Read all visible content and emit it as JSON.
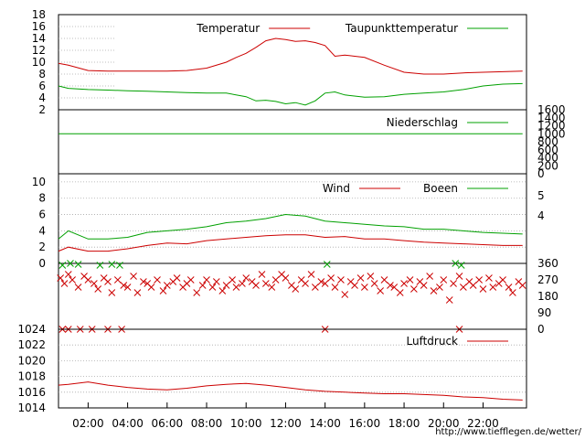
{
  "x_ticks": [
    "02:00",
    "04:00",
    "06:00",
    "08:00",
    "10:00",
    "12:00",
    "14:00",
    "16:00",
    "18:00",
    "20:00",
    "22:00"
  ],
  "footer_url": "http://www.tiefflegen.de/wetter/",
  "colors": {
    "red": "#cc0000",
    "green": "#00a000",
    "grid": "#aaaaaa"
  },
  "chart_data": [
    {
      "type": "line",
      "ylim": [
        2,
        18
      ],
      "yticks": [
        "2",
        "4",
        "6",
        "8",
        "10",
        "12",
        "14",
        "16",
        "18"
      ],
      "legend_position": "top-right",
      "grid": true,
      "series": [
        {
          "name": "Temperatur",
          "color": "#cc0000",
          "x": [
            0.5,
            1,
            2,
            3,
            4,
            5,
            6,
            7,
            8,
            9,
            9.5,
            10,
            10.5,
            11,
            11.5,
            12,
            12.5,
            13,
            13.5,
            14,
            14.5,
            15,
            15.5,
            16,
            17,
            18,
            19,
            20,
            21,
            22,
            23,
            24
          ],
          "y": [
            9.8,
            9.5,
            8.6,
            8.5,
            8.5,
            8.5,
            8.5,
            8.6,
            9.0,
            10.0,
            10.8,
            11.5,
            12.5,
            13.6,
            14.0,
            13.8,
            13.5,
            13.6,
            13.3,
            12.8,
            11.0,
            11.2,
            11.0,
            10.8,
            9.5,
            8.3,
            8.0,
            8.0,
            8.2,
            8.3,
            8.4,
            8.5
          ]
        },
        {
          "name": "Taupunkttemperatur",
          "color": "#00a000",
          "x": [
            0.5,
            1,
            2,
            3,
            4,
            5,
            6,
            7,
            8,
            9,
            10,
            10.5,
            11,
            11.5,
            12,
            12.5,
            13,
            13.5,
            14,
            14.5,
            15,
            16,
            17,
            18,
            19,
            20,
            21,
            22,
            23,
            24
          ],
          "y": [
            6.0,
            5.6,
            5.4,
            5.3,
            5.2,
            5.1,
            5.0,
            4.9,
            4.8,
            4.8,
            4.2,
            3.5,
            3.6,
            3.4,
            3.0,
            3.2,
            2.8,
            3.5,
            4.8,
            5.0,
            4.5,
            4.1,
            4.2,
            4.6,
            4.8,
            5.0,
            5.4,
            6.0,
            6.3,
            6.4
          ]
        }
      ]
    },
    {
      "type": "line",
      "ylim": [
        0,
        1600
      ],
      "yticks": [
        "0",
        "200",
        "400",
        "600",
        "800",
        "1000",
        "1200",
        "1400",
        "1600"
      ],
      "legend_position": "top-right",
      "grid": false,
      "series": [
        {
          "name": "Niederschlag",
          "color": "#00a000",
          "x": [
            0.5,
            24
          ],
          "y": [
            1000,
            1000
          ]
        }
      ]
    },
    {
      "type": "line",
      "ylim": [
        0,
        11
      ],
      "yticks_left": [
        "0",
        "2",
        "4",
        "6",
        "8",
        "10"
      ],
      "yticks_right": [
        "4",
        "5"
      ],
      "legend_position": "top-right",
      "grid": true,
      "series": [
        {
          "name": "Wind",
          "color": "#cc0000",
          "x": [
            0.5,
            1,
            2,
            3,
            4,
            5,
            6,
            7,
            8,
            9,
            10,
            11,
            12,
            13,
            14,
            15,
            16,
            17,
            18,
            19,
            20,
            21,
            22,
            23,
            24
          ],
          "y": [
            1.5,
            2.0,
            1.5,
            1.5,
            1.8,
            2.2,
            2.5,
            2.4,
            2.8,
            3.0,
            3.2,
            3.4,
            3.5,
            3.5,
            3.2,
            3.3,
            3.0,
            3.0,
            2.8,
            2.6,
            2.5,
            2.4,
            2.3,
            2.2,
            2.2
          ]
        },
        {
          "name": "Boeen",
          "color": "#00a000",
          "x": [
            0.5,
            1,
            2,
            3,
            4,
            5,
            6,
            7,
            8,
            9,
            10,
            11,
            12,
            13,
            14,
            15,
            16,
            17,
            18,
            19,
            20,
            21,
            22,
            23,
            24
          ],
          "y": [
            3.0,
            4.0,
            3.0,
            3.0,
            3.2,
            3.8,
            4.0,
            4.2,
            4.5,
            5.0,
            5.2,
            5.5,
            6.0,
            5.8,
            5.2,
            5.0,
            4.8,
            4.6,
            4.5,
            4.2,
            4.2,
            4.0,
            3.8,
            3.7,
            3.6
          ]
        }
      ]
    },
    {
      "type": "scatter",
      "ylim": [
        0,
        360
      ],
      "yticks": [
        "0",
        "90",
        "180",
        "270",
        "360"
      ],
      "grid": false,
      "series": [
        {
          "name": "",
          "color": "#cc0000",
          "marker": "x",
          "x": [
            0.6,
            0.8,
            1.0,
            1.2,
            1.5,
            1.8,
            2.0,
            2.3,
            2.5,
            2.8,
            3.0,
            3.2,
            3.5,
            3.8,
            4.0,
            4.3,
            4.5,
            4.8,
            5.0,
            5.2,
            5.5,
            5.8,
            6.0,
            6.3,
            6.5,
            6.8,
            7.0,
            7.2,
            7.5,
            7.8,
            8.0,
            8.3,
            8.5,
            8.8,
            9.0,
            9.3,
            9.5,
            9.8,
            10.0,
            10.3,
            10.5,
            10.8,
            11.0,
            11.3,
            11.5,
            11.8,
            12.0,
            12.3,
            12.5,
            12.8,
            13.0,
            13.3,
            13.5,
            13.8,
            14.0,
            14.3,
            14.5,
            14.8,
            15.0,
            15.3,
            15.5,
            15.8,
            16.0,
            16.3,
            16.5,
            16.8,
            17.0,
            17.3,
            17.5,
            17.8,
            18.0,
            18.3,
            18.5,
            18.8,
            19.0,
            19.3,
            19.5,
            19.8,
            20.0,
            20.3,
            20.5,
            20.8,
            21.0,
            21.3,
            21.5,
            21.8,
            22.0,
            22.3,
            22.5,
            22.8,
            23.0,
            23.3,
            23.5,
            23.8,
            24.0,
            0.7,
            1.0,
            1.6,
            2.2,
            3.0,
            3.7,
            14.0,
            20.8
          ],
          "y": [
            280,
            250,
            300,
            270,
            230,
            290,
            270,
            250,
            220,
            280,
            260,
            200,
            270,
            240,
            230,
            290,
            200,
            260,
            250,
            230,
            270,
            210,
            240,
            260,
            280,
            230,
            250,
            270,
            200,
            240,
            270,
            230,
            260,
            210,
            240,
            270,
            230,
            250,
            280,
            260,
            240,
            300,
            250,
            230,
            270,
            300,
            280,
            240,
            220,
            270,
            250,
            300,
            230,
            260,
            250,
            280,
            230,
            270,
            190,
            260,
            240,
            280,
            230,
            290,
            250,
            210,
            270,
            240,
            230,
            200,
            250,
            270,
            220,
            260,
            240,
            290,
            210,
            230,
            270,
            160,
            250,
            290,
            230,
            260,
            240,
            270,
            220,
            280,
            230,
            250,
            270,
            230,
            200,
            260,
            240,
            0,
            0,
            0,
            0,
            0,
            0,
            0,
            0
          ]
        },
        {
          "name": "",
          "color": "#00a000",
          "marker": "x",
          "x": [
            0.7,
            1.1,
            1.5,
            2.6,
            3.2,
            3.6,
            14.1,
            20.6,
            20.9
          ],
          "y": [
            350,
            360,
            355,
            350,
            355,
            350,
            355,
            360,
            350
          ]
        }
      ]
    },
    {
      "type": "line",
      "ylim": [
        1014,
        1024
      ],
      "yticks": [
        "1014",
        "1016",
        "1018",
        "1020",
        "1022",
        "1024"
      ],
      "legend_position": "top-right",
      "grid": true,
      "series": [
        {
          "name": "Luftdruck",
          "color": "#cc0000",
          "x": [
            0.5,
            1,
            2,
            3,
            4,
            5,
            6,
            7,
            8,
            9,
            10,
            11,
            12,
            13,
            14,
            15,
            16,
            17,
            18,
            19,
            20,
            21,
            22,
            23,
            24
          ],
          "y": [
            1016.9,
            1017.0,
            1017.3,
            1016.9,
            1016.6,
            1016.4,
            1016.3,
            1016.5,
            1016.8,
            1017.0,
            1017.1,
            1016.9,
            1016.6,
            1016.3,
            1016.1,
            1016.0,
            1015.9,
            1015.8,
            1015.8,
            1015.7,
            1015.6,
            1015.4,
            1015.3,
            1015.1,
            1015.0
          ]
        }
      ]
    }
  ]
}
